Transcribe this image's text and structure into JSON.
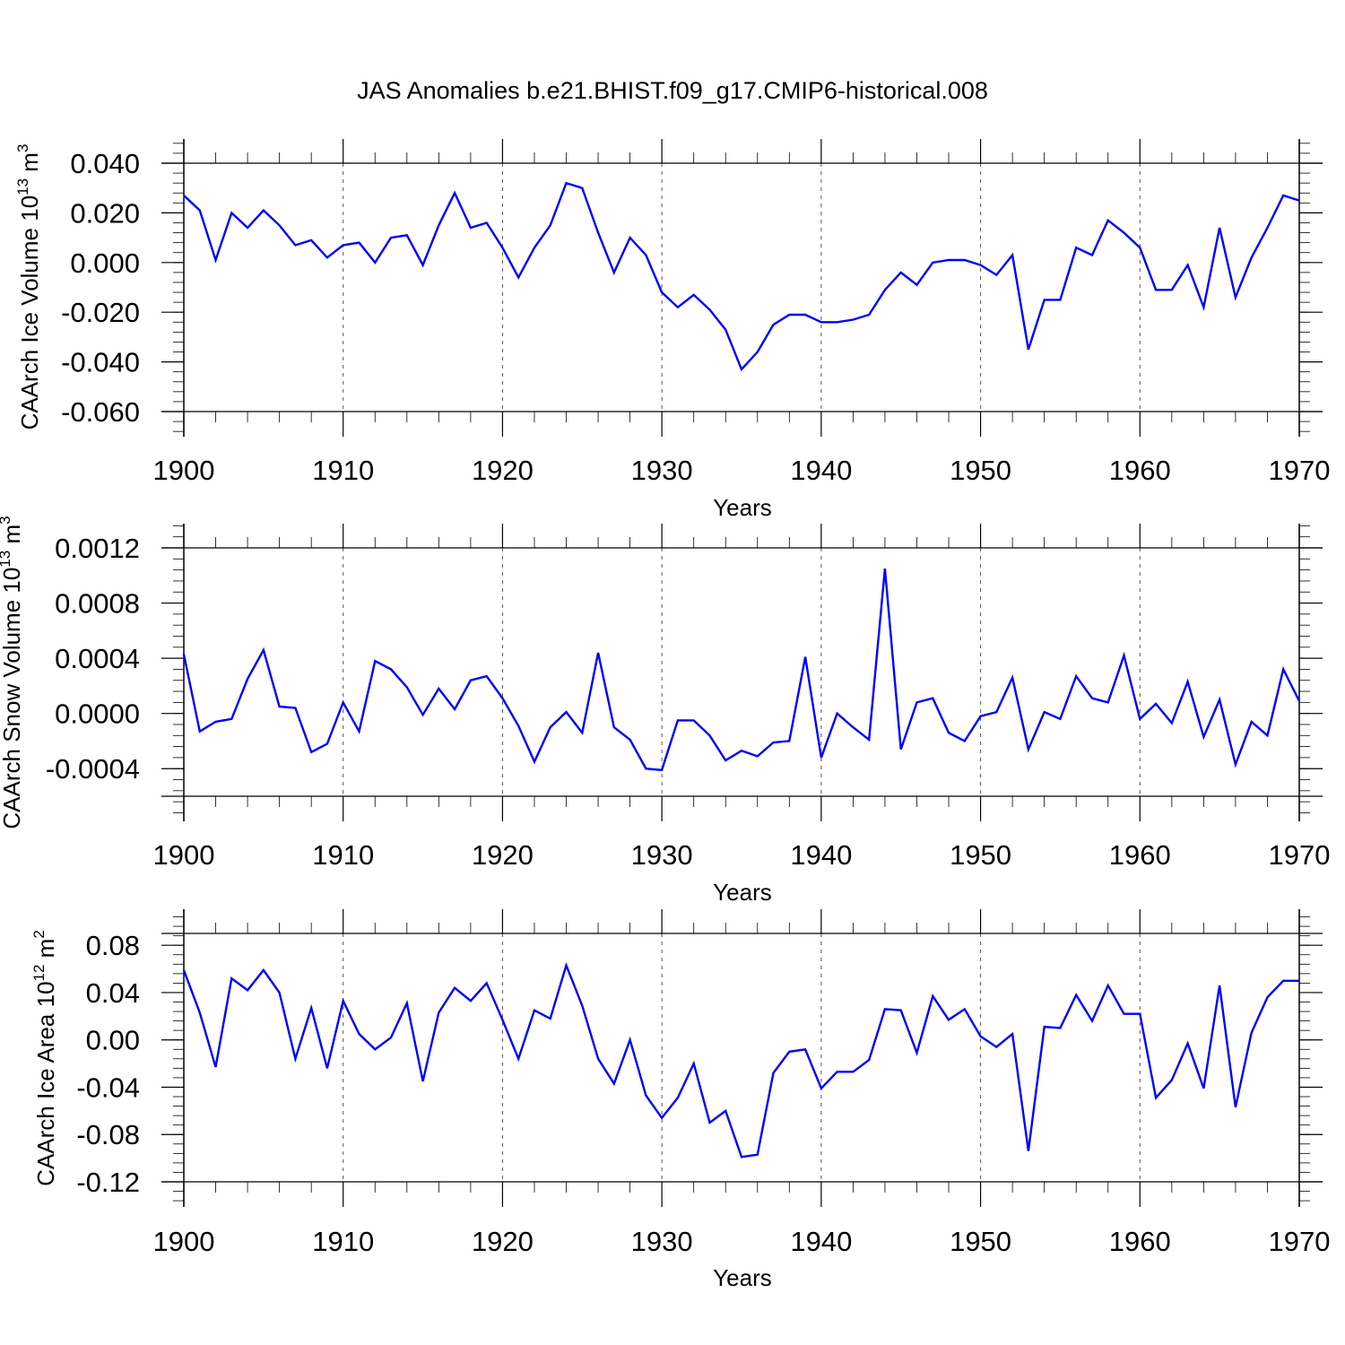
{
  "figure": {
    "title": "JAS Anomalies b.e21.BHIST.f09_g17.CMIP6-historical.008"
  },
  "colors": {
    "line": "#0000ff",
    "axes": "#000000",
    "grid": "#555555"
  },
  "chart_data": [
    {
      "type": "line",
      "ylabel": {
        "text": "CAArch Ice Volume 10",
        "exp": "13",
        "unit": " m",
        "unit_exp": "3"
      },
      "xlabel": "Years",
      "xlim": [
        1900,
        1970
      ],
      "ylim": [
        -0.06,
        0.04
      ],
      "xticks": [
        "1900",
        "1910",
        "1920",
        "1930",
        "1940",
        "1950",
        "1960",
        "1970"
      ],
      "yticks": [
        {
          "value": 0.04,
          "label": "0.040"
        },
        {
          "value": 0.02,
          "label": "0.020"
        },
        {
          "value": 0.0,
          "label": "0.000"
        },
        {
          "value": -0.02,
          "label": "-0.020"
        },
        {
          "value": -0.04,
          "label": "-0.040"
        },
        {
          "value": -0.06,
          "label": "-0.060"
        }
      ],
      "minor_step": 0.004,
      "grid": "dashed vertical at decades",
      "series": [
        {
          "name": "CAArch Ice Volume",
          "x": [
            1900,
            1901,
            1902,
            1903,
            1904,
            1905,
            1906,
            1907,
            1908,
            1909,
            1910,
            1911,
            1912,
            1913,
            1914,
            1915,
            1916,
            1917,
            1918,
            1919,
            1920,
            1921,
            1922,
            1923,
            1924,
            1925,
            1926,
            1927,
            1928,
            1929,
            1930,
            1931,
            1932,
            1933,
            1934,
            1935,
            1936,
            1937,
            1938,
            1939,
            1940,
            1941,
            1942,
            1943,
            1944,
            1945,
            1946,
            1947,
            1948,
            1949,
            1950,
            1951,
            1952,
            1953,
            1954,
            1955,
            1956,
            1957,
            1958,
            1959,
            1960,
            1961,
            1962,
            1963,
            1964,
            1965,
            1966,
            1967,
            1968,
            1969,
            1970
          ],
          "values": [
            0.027,
            0.021,
            0.001,
            0.02,
            0.014,
            0.021,
            0.015,
            0.007,
            0.009,
            0.002,
            0.007,
            0.008,
            0.0,
            0.01,
            0.011,
            -0.001,
            0.015,
            0.028,
            0.014,
            0.016,
            0.006,
            -0.006,
            0.006,
            0.015,
            0.032,
            0.03,
            0.012,
            -0.004,
            0.01,
            0.003,
            -0.012,
            -0.018,
            -0.013,
            -0.019,
            -0.027,
            -0.043,
            -0.036,
            -0.025,
            -0.021,
            -0.021,
            -0.024,
            -0.024,
            -0.023,
            -0.021,
            -0.011,
            -0.004,
            -0.009,
            0.0,
            0.001,
            0.001,
            -0.001,
            -0.005,
            0.003,
            -0.035,
            -0.015,
            -0.015,
            0.006,
            0.003,
            0.017,
            0.012,
            0.006,
            -0.011,
            -0.011,
            -0.001,
            -0.018,
            0.014,
            -0.014,
            0.002,
            0.014,
            0.027,
            0.025
          ]
        }
      ]
    },
    {
      "type": "line",
      "ylabel": {
        "text": "CAArch Snow Volume 10",
        "exp": "13",
        "unit": " m",
        "unit_exp": "3"
      },
      "xlabel": "Years",
      "xlim": [
        1900,
        1970
      ],
      "ylim": [
        -0.0006,
        0.0012
      ],
      "xticks": [
        "1900",
        "1910",
        "1920",
        "1930",
        "1940",
        "1950",
        "1960",
        "1970"
      ],
      "yticks": [
        {
          "value": 0.0012,
          "label": "0.0012"
        },
        {
          "value": 0.0008,
          "label": "0.0008"
        },
        {
          "value": 0.0004,
          "label": "0.0004"
        },
        {
          "value": 0.0,
          "label": "0.0000"
        },
        {
          "value": -0.0004,
          "label": "-0.0004"
        }
      ],
      "minor_step": 8e-05,
      "grid": "dashed vertical at decades",
      "series": [
        {
          "name": "CAArch Snow Volume",
          "x": [
            1900,
            1901,
            1902,
            1903,
            1904,
            1905,
            1906,
            1907,
            1908,
            1909,
            1910,
            1911,
            1912,
            1913,
            1914,
            1915,
            1916,
            1917,
            1918,
            1919,
            1920,
            1921,
            1922,
            1923,
            1924,
            1925,
            1926,
            1927,
            1928,
            1929,
            1930,
            1931,
            1932,
            1933,
            1934,
            1935,
            1936,
            1937,
            1938,
            1939,
            1940,
            1941,
            1942,
            1943,
            1944,
            1945,
            1946,
            1947,
            1948,
            1949,
            1950,
            1951,
            1952,
            1953,
            1954,
            1955,
            1956,
            1957,
            1958,
            1959,
            1960,
            1961,
            1962,
            1963,
            1964,
            1965,
            1966,
            1967,
            1968,
            1969,
            1970
          ],
          "values": [
            0.00043,
            -0.00013,
            -6e-05,
            -4e-05,
            0.00025,
            0.00046,
            5e-05,
            4e-05,
            -0.00028,
            -0.00022,
            8e-05,
            -0.00013,
            0.00038,
            0.00032,
            0.00019,
            -1e-05,
            0.00018,
            3e-05,
            0.00024,
            0.00027,
            0.00011,
            -9e-05,
            -0.00035,
            -0.0001,
            1e-05,
            -0.00014,
            0.00044,
            -0.0001,
            -0.00019,
            -0.0004,
            -0.00041,
            -5e-05,
            -5e-05,
            -0.00016,
            -0.00034,
            -0.00027,
            -0.00031,
            -0.00021,
            -0.0002,
            0.00041,
            -0.00032,
            0.0,
            -0.0001,
            -0.00019,
            0.00105,
            -0.00026,
            8e-05,
            0.00011,
            -0.00014,
            -0.0002,
            -2e-05,
            1e-05,
            0.00026,
            -0.00026,
            1e-05,
            -4e-05,
            0.00027,
            0.00011,
            8e-05,
            0.00042,
            -4e-05,
            7e-05,
            -7e-05,
            0.00023,
            -0.00017,
            0.0001,
            -0.00037,
            -6e-05,
            -0.00016,
            0.00032,
            9e-05
          ]
        }
      ]
    },
    {
      "type": "line",
      "ylabel": {
        "text": "CAArch Ice Area 10",
        "exp": "12",
        "unit": " m",
        "unit_exp": "2"
      },
      "xlabel": "Years",
      "xlim": [
        1900,
        1970
      ],
      "ylim": [
        -0.12,
        0.09
      ],
      "xticks": [
        "1900",
        "1910",
        "1920",
        "1930",
        "1940",
        "1950",
        "1960",
        "1970"
      ],
      "yticks": [
        {
          "value": 0.08,
          "label": "0.08"
        },
        {
          "value": 0.04,
          "label": "0.04"
        },
        {
          "value": 0.0,
          "label": "0.00"
        },
        {
          "value": -0.04,
          "label": "-0.04"
        },
        {
          "value": -0.08,
          "label": "-0.08"
        },
        {
          "value": -0.12,
          "label": "-0.12"
        }
      ],
      "minor_step": 0.008,
      "grid": "dashed vertical at decades",
      "series": [
        {
          "name": "CAArch Ice Area",
          "x": [
            1900,
            1901,
            1902,
            1903,
            1904,
            1905,
            1906,
            1907,
            1908,
            1909,
            1910,
            1911,
            1912,
            1913,
            1914,
            1915,
            1916,
            1917,
            1918,
            1919,
            1920,
            1921,
            1922,
            1923,
            1924,
            1925,
            1926,
            1927,
            1928,
            1929,
            1930,
            1931,
            1932,
            1933,
            1934,
            1935,
            1936,
            1937,
            1938,
            1939,
            1940,
            1941,
            1942,
            1943,
            1944,
            1945,
            1946,
            1947,
            1948,
            1949,
            1950,
            1951,
            1952,
            1953,
            1954,
            1955,
            1956,
            1957,
            1958,
            1959,
            1960,
            1961,
            1962,
            1963,
            1964,
            1965,
            1966,
            1967,
            1968,
            1969,
            1970
          ],
          "values": [
            0.059,
            0.023,
            -0.023,
            0.052,
            0.042,
            0.059,
            0.04,
            -0.016,
            0.027,
            -0.024,
            0.033,
            0.005,
            -0.008,
            0.002,
            0.031,
            -0.035,
            0.023,
            0.044,
            0.033,
            0.048,
            0.017,
            -0.016,
            0.025,
            0.018,
            0.063,
            0.029,
            -0.016,
            -0.037,
            0.0,
            -0.047,
            -0.066,
            -0.049,
            -0.02,
            -0.07,
            -0.06,
            -0.099,
            -0.097,
            -0.028,
            -0.01,
            -0.008,
            -0.041,
            -0.027,
            -0.027,
            -0.017,
            0.026,
            0.025,
            -0.011,
            0.037,
            0.017,
            0.026,
            0.003,
            -0.006,
            0.005,
            -0.094,
            0.011,
            0.01,
            0.038,
            0.016,
            0.046,
            0.022,
            0.022,
            -0.049,
            -0.034,
            -0.003,
            -0.041,
            0.046,
            -0.057,
            0.006,
            0.036,
            0.05,
            0.05
          ]
        }
      ]
    }
  ]
}
